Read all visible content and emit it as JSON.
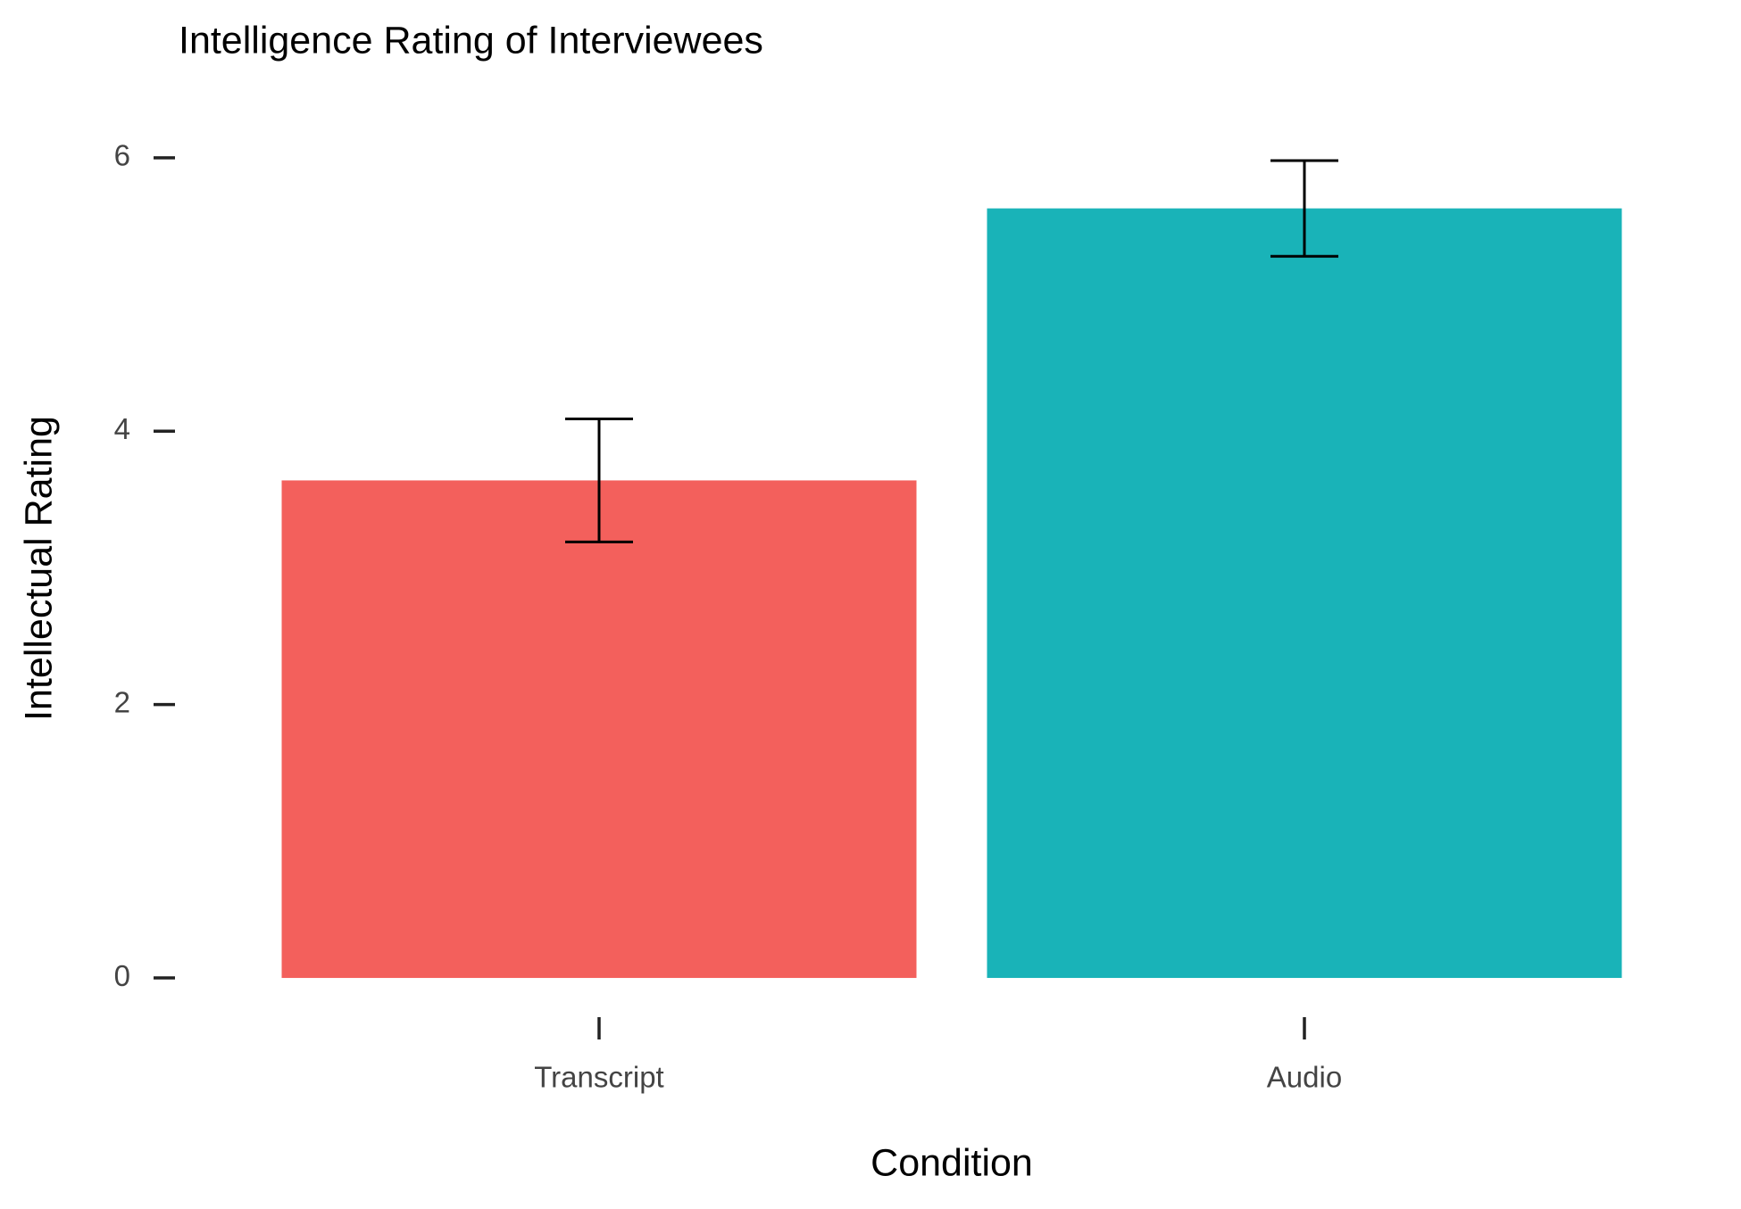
{
  "chart_data": {
    "type": "bar",
    "title": "Intelligence Rating of Interviewees",
    "x_label": "Condition",
    "y_label": "Intellectual Rating",
    "categories": [
      "Transcript",
      "Audio"
    ],
    "values": [
      3.64,
      5.63
    ],
    "errors": [
      0.45,
      0.35
    ],
    "colors": [
      "#f3605c",
      "#19b3b8"
    ],
    "ylim": [
      -0.3,
      6.28
    ],
    "yticks": [
      0,
      2,
      4,
      6
    ],
    "grid": false
  }
}
